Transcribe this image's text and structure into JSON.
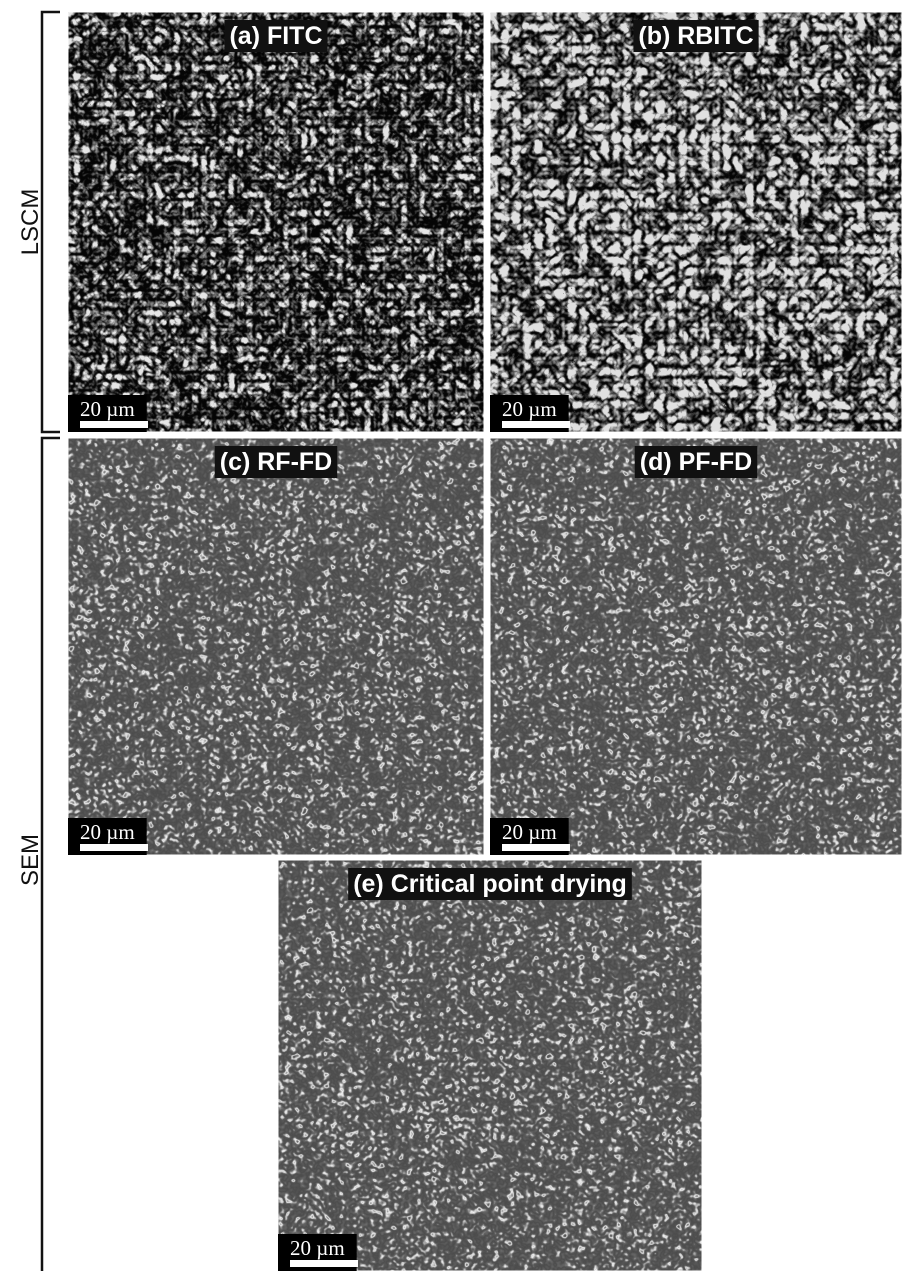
{
  "side_labels": {
    "top": "LSCM",
    "bottom": "SEM"
  },
  "panels": [
    {
      "label": "(a) FITC",
      "scale_bar": "20 µm"
    },
    {
      "label": "(b) RBITC",
      "scale_bar": "20 µm"
    },
    {
      "label": "(c) RF-FD",
      "scale_bar": "20 µm"
    },
    {
      "label": "(d) PF-FD",
      "scale_bar": "20 µm"
    },
    {
      "label": "(e) Critical point drying",
      "scale_bar": "20 µm"
    }
  ]
}
